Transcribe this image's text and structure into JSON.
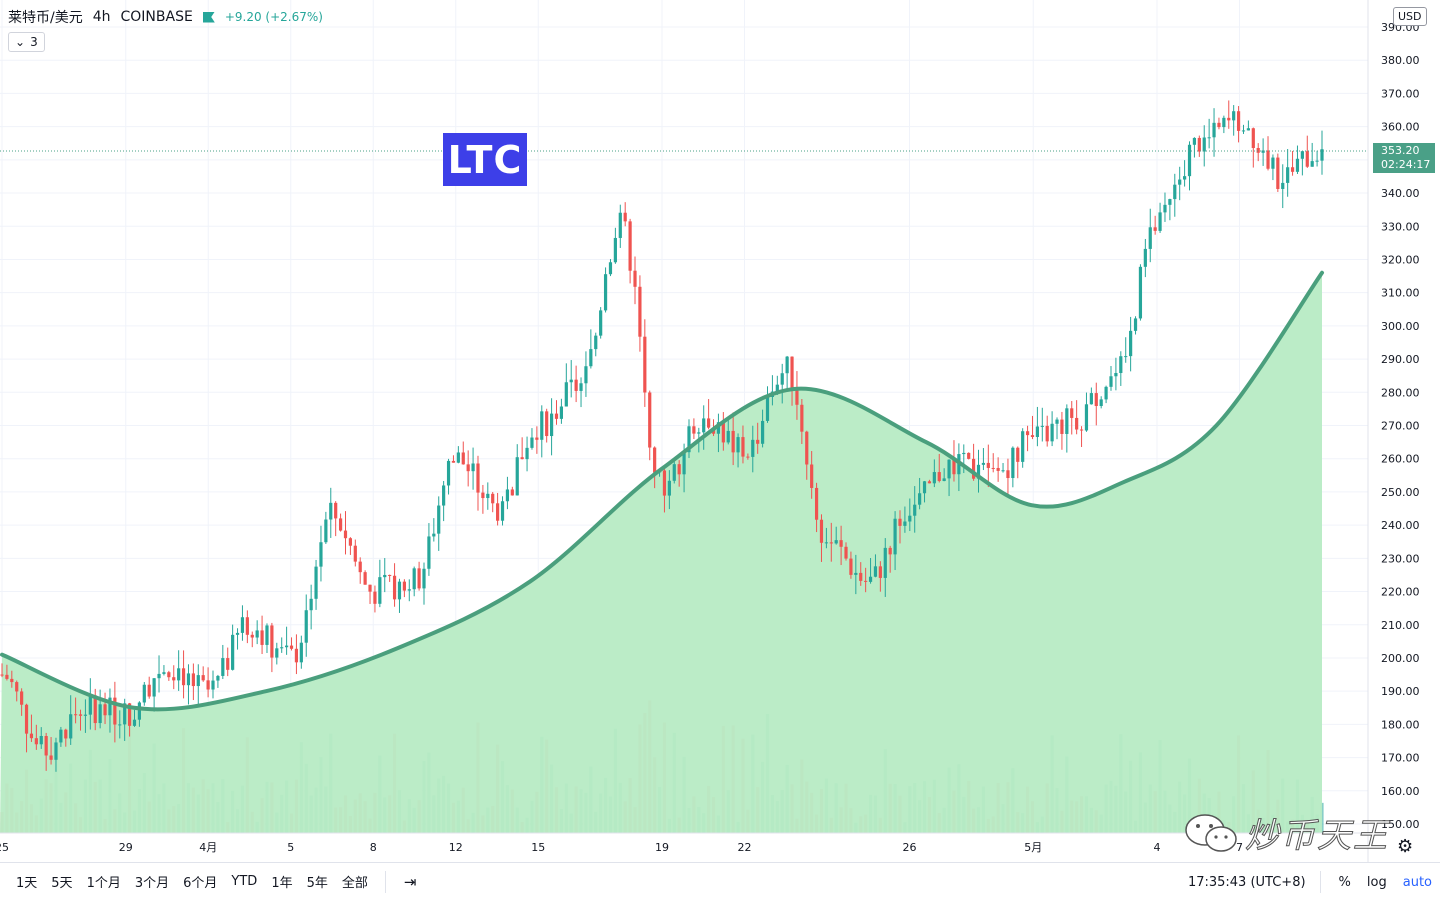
{
  "header": {
    "symbol": "莱特币/美元",
    "interval": "4h",
    "exchange": "COINBASE",
    "change": "+9.20 (+2.67%)",
    "collapse_count": "3"
  },
  "overlay_label": "LTC",
  "axis": {
    "currency": "USD",
    "last_price": "353.20",
    "countdown": "02:24:17"
  },
  "bottom": {
    "ranges": [
      "1天",
      "5天",
      "1个月",
      "3个月",
      "6个月",
      "YTD",
      "1年",
      "5年",
      "全部"
    ],
    "clock": "17:35:43 (UTC+8)",
    "percent_label": "%",
    "log_label": "log",
    "auto_label": "auto"
  },
  "watermark": "炒币天王",
  "colors": {
    "up": "#26a69a",
    "down": "#ef5350",
    "fill": "#b7ebc4",
    "curve": "#4a9f7d",
    "label_bg": "#3d3fe8"
  },
  "chart_data": {
    "type": "candlestick",
    "ylim": [
      150,
      390
    ],
    "y_ticks": [
      150,
      160,
      170,
      180,
      190,
      200,
      210,
      220,
      230,
      240,
      250,
      260,
      270,
      280,
      290,
      300,
      310,
      320,
      330,
      340,
      350,
      360,
      370,
      380,
      390
    ],
    "x_tick_labels": [
      "25",
      "29",
      "4月",
      "5",
      "8",
      "12",
      "15",
      "19",
      "22",
      "26",
      "5月",
      "4",
      "7"
    ],
    "last_price": 353.2,
    "anchors": [
      {
        "label": "25",
        "price": 195
      },
      {
        "label": "",
        "price": 172
      },
      {
        "label": "",
        "price": 185
      },
      {
        "label": "29",
        "price": 183
      },
      {
        "label": "",
        "price": 198
      },
      {
        "label": "4月",
        "price": 190
      },
      {
        "label": "",
        "price": 210
      },
      {
        "label": "5",
        "price": 200
      },
      {
        "label": "",
        "price": 243
      },
      {
        "label": "8",
        "price": 220
      },
      {
        "label": "",
        "price": 223
      },
      {
        "label": "12",
        "price": 260
      },
      {
        "label": "",
        "price": 245
      },
      {
        "label": "15",
        "price": 270
      },
      {
        "label": "",
        "price": 282
      },
      {
        "label": "",
        "price": 330
      },
      {
        "label": "19",
        "price": 252
      },
      {
        "label": "",
        "price": 273
      },
      {
        "label": "22",
        "price": 262
      },
      {
        "label": "",
        "price": 287
      },
      {
        "label": "",
        "price": 235
      },
      {
        "label": "",
        "price": 223
      },
      {
        "label": "26",
        "price": 245
      },
      {
        "label": "",
        "price": 258
      },
      {
        "label": "",
        "price": 255
      },
      {
        "label": "5月",
        "price": 266
      },
      {
        "label": "",
        "price": 272
      },
      {
        "label": "",
        "price": 285
      },
      {
        "label": "4",
        "price": 330
      },
      {
        "label": "",
        "price": 355
      },
      {
        "label": "7",
        "price": 362
      },
      {
        "label": "",
        "price": 345
      },
      {
        "label": "",
        "price": 353.2
      }
    ],
    "smooth_curve": [
      {
        "t": 0.0,
        "price": 201
      },
      {
        "t": 0.1,
        "price": 185
      },
      {
        "t": 0.2,
        "price": 190
      },
      {
        "t": 0.3,
        "price": 203
      },
      {
        "t": 0.4,
        "price": 223
      },
      {
        "t": 0.5,
        "price": 257
      },
      {
        "t": 0.6,
        "price": 281
      },
      {
        "t": 0.7,
        "price": 265
      },
      {
        "t": 0.78,
        "price": 246
      },
      {
        "t": 0.85,
        "price": 253
      },
      {
        "t": 0.92,
        "price": 270
      },
      {
        "t": 1.0,
        "price": 316
      }
    ]
  }
}
